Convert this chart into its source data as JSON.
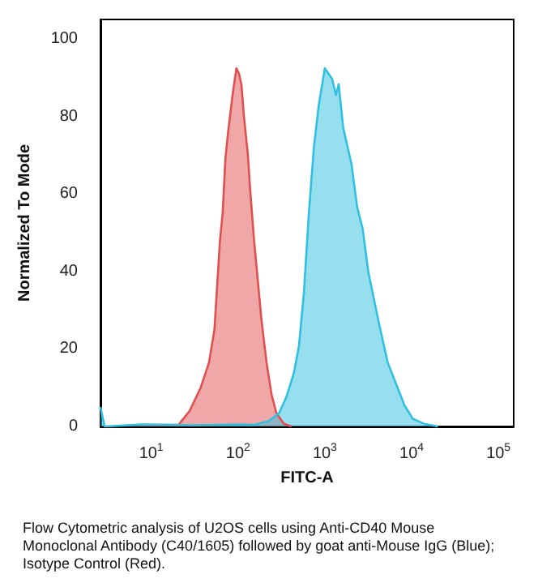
{
  "chart_data": {
    "type": "area",
    "xlabel": "FITC-A",
    "ylabel": "Normalized To Mode",
    "log": "x",
    "grid": false,
    "marker": "none",
    "line_style": "solid",
    "xlim": [
      2.6,
      150000
    ],
    "xticks": [
      {
        "value": 10,
        "label": "10$^{1}$"
      },
      {
        "value": 100,
        "label": "10$^{2}$"
      },
      {
        "value": 1000,
        "label": "10$^{3}$"
      },
      {
        "value": 10000,
        "label": "10$^{4}$"
      },
      {
        "value": 100000,
        "label": "10$^{5}$"
      }
    ],
    "ylim": [
      0,
      105
    ],
    "yticks": [
      0,
      20,
      40,
      60,
      80,
      100
    ],
    "series": [
      {
        "color": "#e05050",
        "x": [
          6.9,
          20.7,
          22.3,
          27.7,
          37.1,
          46.3,
          53.5,
          61.9,
          66.5,
          71.5,
          76.9,
          86.5,
          95.7,
          102.7,
          109.7,
          117,
          130,
          137,
          153,
          170,
          186,
          213,
          243,
          277,
          338,
          412
        ],
        "values": [
          0.4,
          0.4,
          1.4,
          4,
          10,
          16.5,
          25,
          48,
          55,
          69,
          76,
          85.5,
          92.4,
          91,
          88,
          80,
          70,
          62,
          48,
          37,
          27.6,
          16.5,
          8.3,
          3.4,
          0.7,
          0
        ]
      },
      {
        "color": "#30c0e0",
        "x": [
          2.6,
          2.9,
          8,
          30,
          100,
          153,
          227,
          296,
          361,
          440,
          503,
          574,
          655,
          748,
          853,
          1000,
          1211,
          1343,
          1445,
          1630,
          2032,
          2355,
          2730,
          3162,
          3664,
          4246,
          5297,
          6620,
          8260,
          10300,
          13870,
          20100
        ],
        "values": [
          5,
          0,
          0.5,
          0.3,
          0.5,
          0.4,
          1.4,
          3.4,
          7.6,
          13.8,
          20.7,
          34.5,
          55,
          72,
          83,
          92.4,
          89.7,
          85.5,
          88.3,
          77,
          67.6,
          56.6,
          51,
          40,
          33,
          26.2,
          16.5,
          11,
          5.5,
          2,
          0.7,
          0
        ]
      }
    ],
    "annotations": [
      "Flow Cytometric analysis of U2OS cells using Anti-CD40 Mouse Monoclonal Antibody (C40/1605) followed by goat anti-Mouse IgG (Blue); Isotype Control (Red)."
    ]
  }
}
